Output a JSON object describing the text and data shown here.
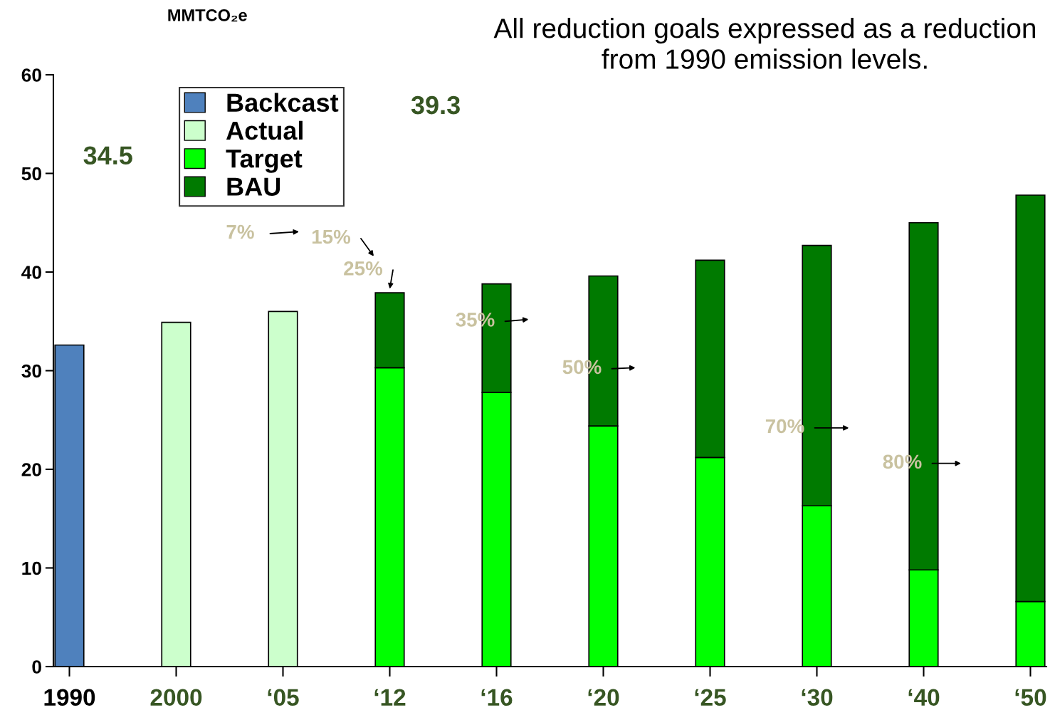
{
  "chart_data": {
    "type": "bar",
    "stacked": true,
    "title": "All reduction goals expressed as a reduction from 1990 emission levels.",
    "ylabel": "MMTCO₂e",
    "categories": [
      "1990",
      "2000",
      "‘05",
      "‘12",
      "‘16",
      "‘20",
      "‘25",
      "‘30",
      "‘40",
      "‘50"
    ],
    "series": [
      {
        "name": "Backcast",
        "color": "#4f81bd",
        "values": [
          32.6,
          null,
          null,
          null,
          null,
          null,
          null,
          null,
          null,
          null
        ]
      },
      {
        "name": "Actual",
        "color": "#ccffcc",
        "values": [
          null,
          34.9,
          36.0,
          null,
          null,
          null,
          null,
          null,
          null,
          null
        ]
      },
      {
        "name": "Target",
        "color": "#00ff00",
        "values": [
          null,
          null,
          null,
          30.3,
          27.8,
          24.4,
          21.2,
          16.3,
          9.8,
          6.6
        ]
      },
      {
        "name": "BAU",
        "color": "#007a00",
        "values": [
          null,
          null,
          null,
          7.6,
          11.0,
          15.2,
          20.0,
          26.4,
          35.2,
          41.2
        ]
      }
    ],
    "ylim": [
      0,
      60
    ],
    "yticks": [
      0,
      10,
      20,
      30,
      40,
      50,
      60
    ],
    "grid": false,
    "legend": "top left",
    "annotations": [
      "34.5",
      "39.3",
      "7%",
      "15%",
      "25%",
      "35%",
      "50%",
      "70%",
      "80%"
    ]
  }
}
